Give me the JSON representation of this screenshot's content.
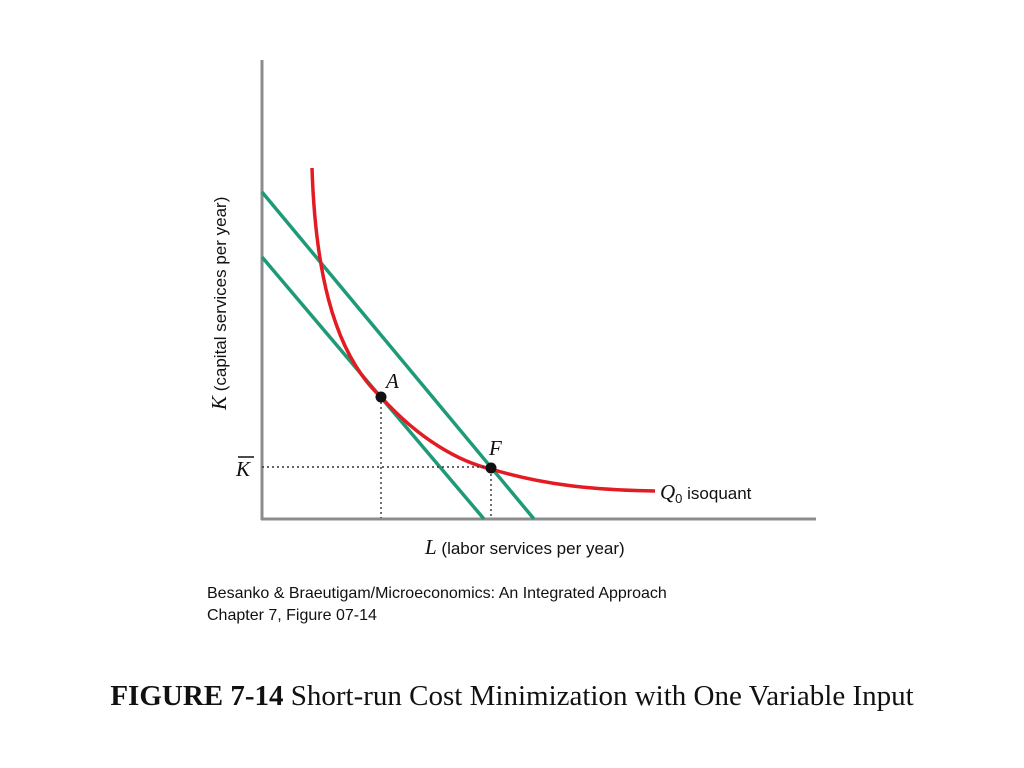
{
  "diagram": {
    "y_axis_var": "K",
    "y_axis_text": " (capital services per year)",
    "x_axis_var": "L",
    "x_axis_text": " (labor services per year)",
    "kbar_label": "K",
    "point_a": "A",
    "point_f": "F",
    "isoquant_q": "Q",
    "isoquant_sub": "0",
    "isoquant_text": " isoquant",
    "colors": {
      "isoquant": "#e31b23",
      "isocost": "#1f9a78",
      "axis": "#8c8c8c",
      "point": "#111111"
    }
  },
  "source": {
    "line1": "Besanko & Braeutigam/Microeconomics: An Integrated Approach",
    "line2": "Chapter 7, Figure 07-14"
  },
  "caption": {
    "number": "FIGURE 7-14",
    "title": "Short-run Cost Minimization with One Variable Input"
  }
}
